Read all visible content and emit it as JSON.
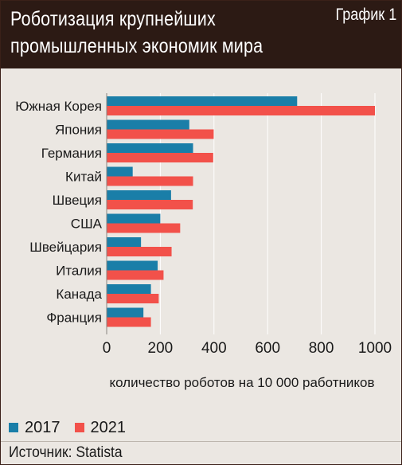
{
  "header": {
    "title": "Роботизация крупнейших\nпромышленных экономик мира",
    "chart_number": "График 1"
  },
  "source": "Источник: Statista",
  "colors": {
    "2017": "#1a7ea8",
    "2021": "#f2514a",
    "header_bg": "#2c1a14",
    "panel_bg": "#ebe7e2"
  },
  "chart_data": {
    "type": "bar",
    "orientation": "horizontal",
    "categories": [
      "Южная Корея",
      "Япония",
      "Германия",
      "Китай",
      "Швеция",
      "США",
      "Швейцария",
      "Италия",
      "Канада",
      "Франция"
    ],
    "series": [
      {
        "name": "2017",
        "color": "#1a7ea8",
        "values": [
          710,
          308,
          322,
          97,
          240,
          200,
          128,
          190,
          165,
          137
        ]
      },
      {
        "name": "2021",
        "color": "#f2514a",
        "values": [
          1000,
          399,
          397,
          322,
          321,
          274,
          242,
          212,
          194,
          165
        ]
      }
    ],
    "xlabel": "количество роботов на 10 000 работников",
    "xlim": [
      0,
      1000
    ],
    "xticks": [
      "0",
      "200",
      "400",
      "600",
      "800",
      "1000"
    ],
    "grid": true,
    "legend_position": "bottom-left"
  }
}
